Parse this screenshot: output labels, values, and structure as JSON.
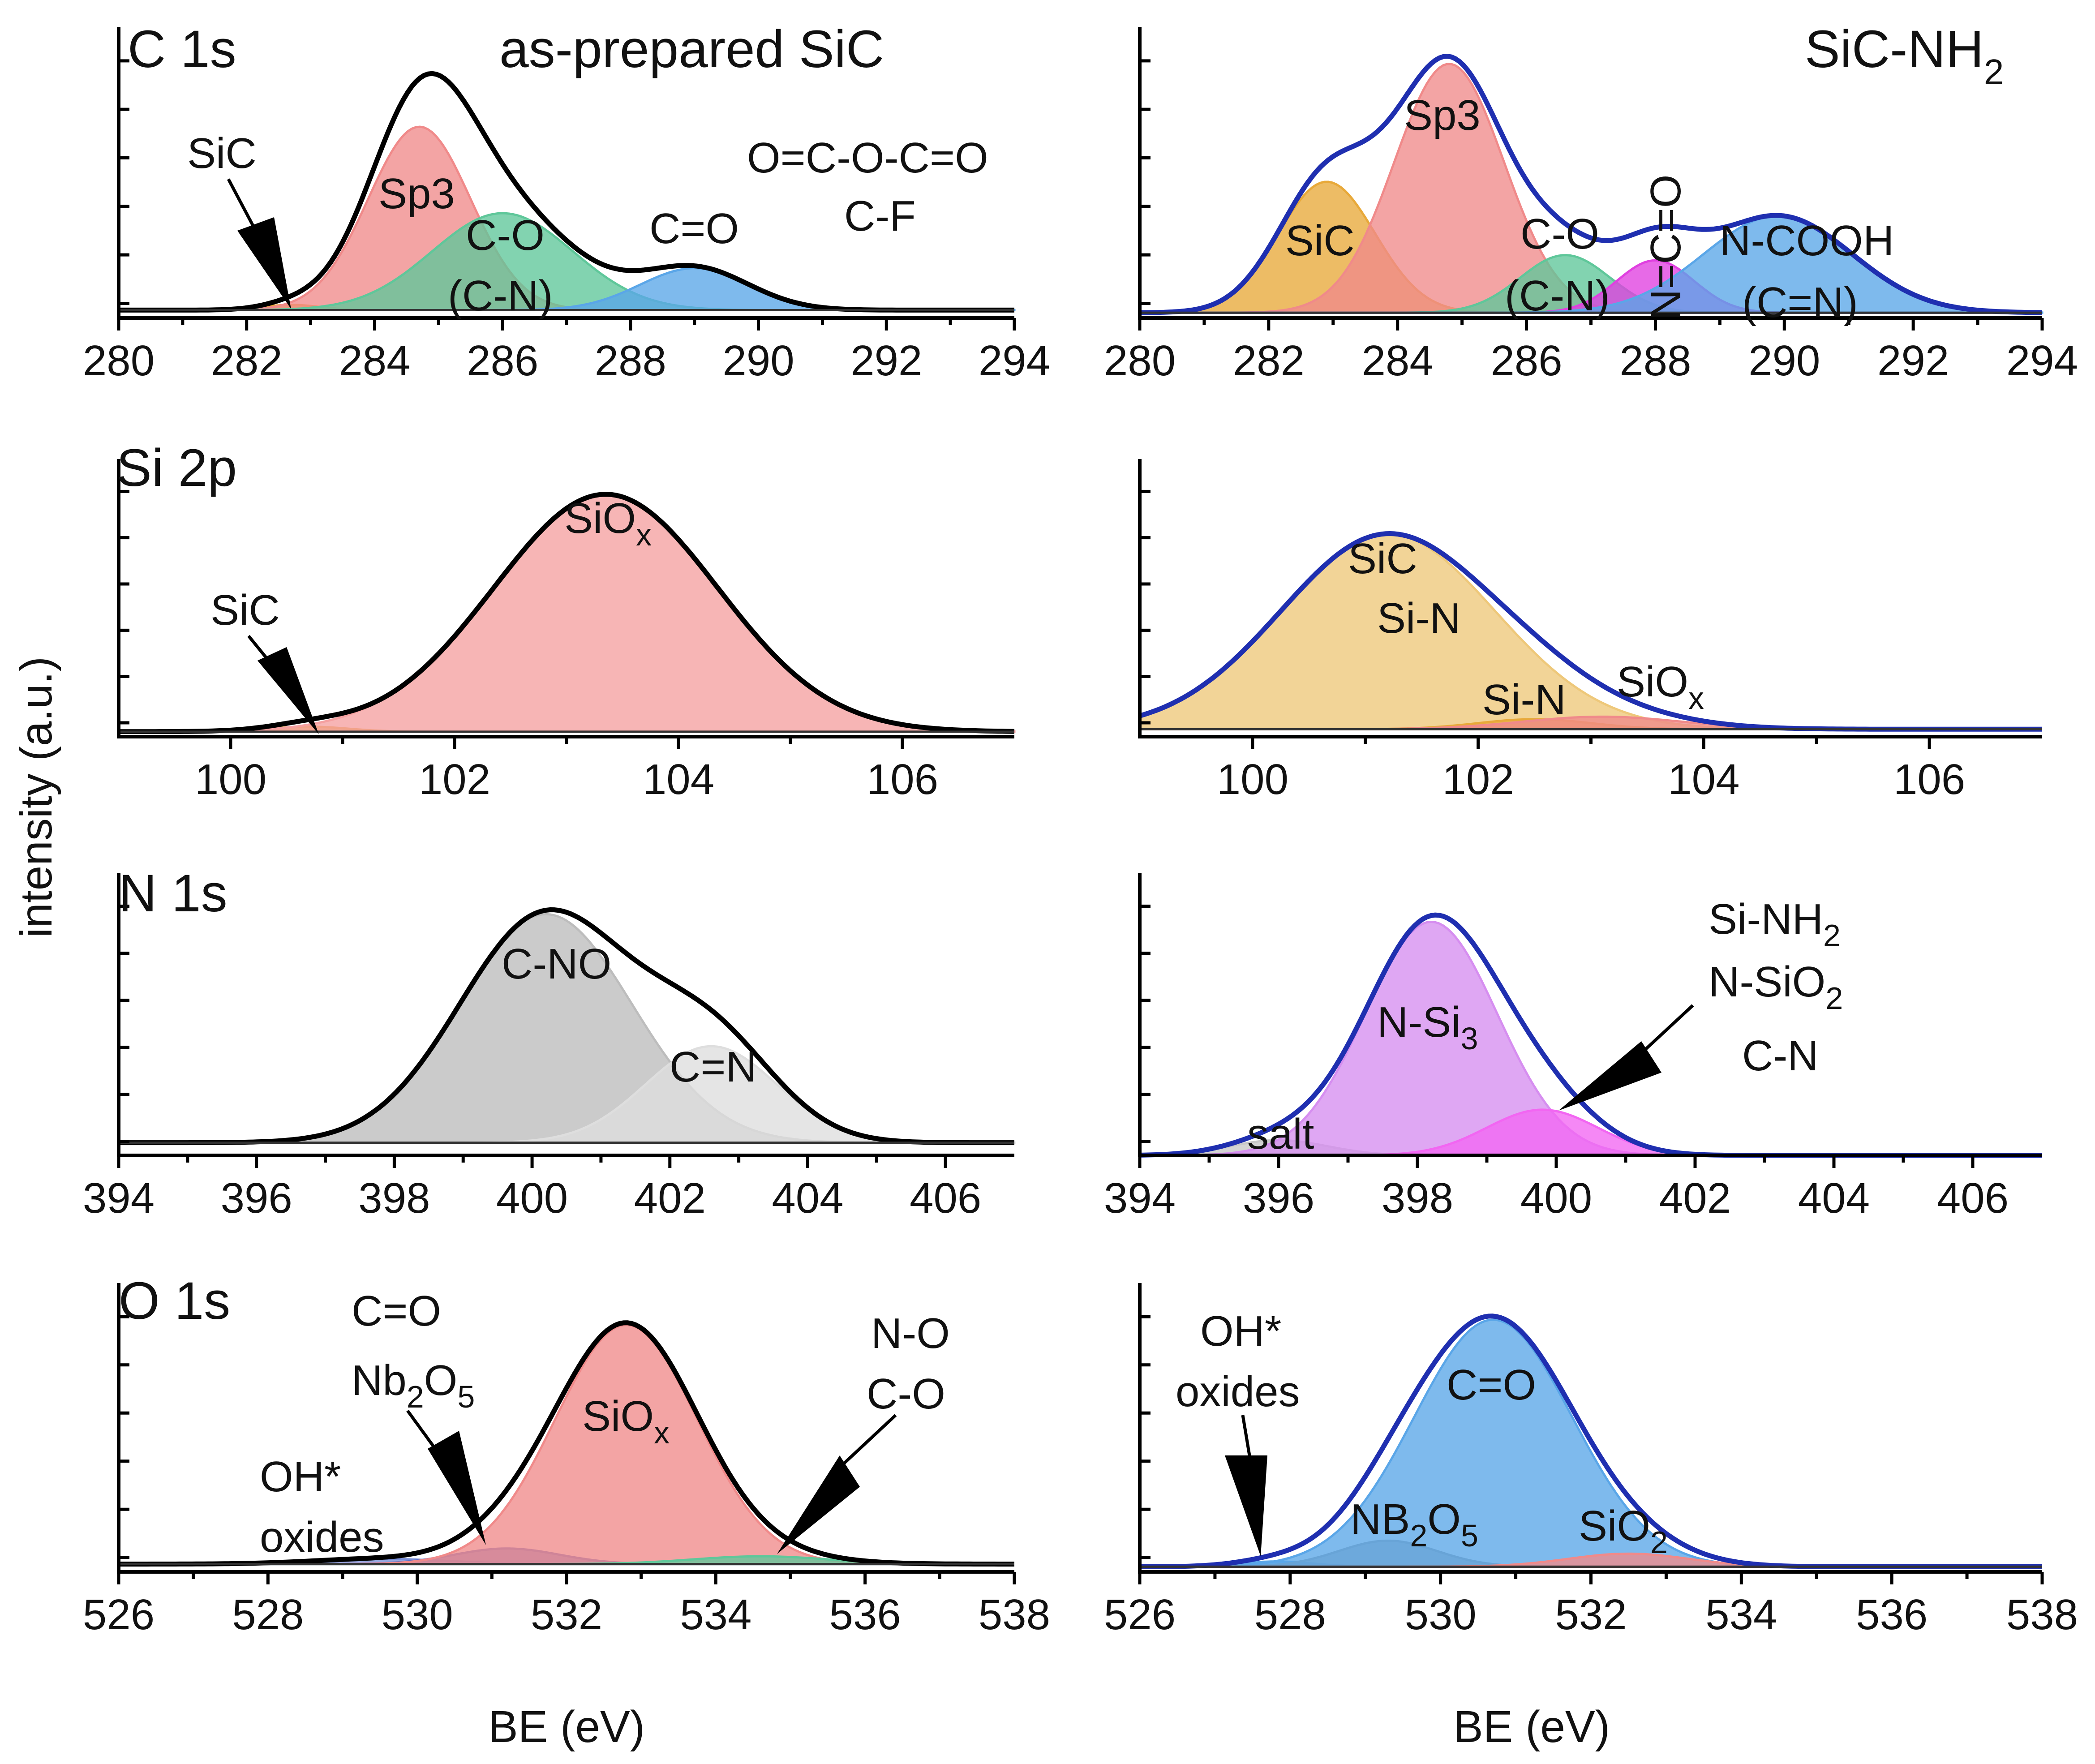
{
  "figure": {
    "ylabel": "intensity (a.u.)",
    "xlabel": "BE (eV)"
  },
  "chart_data": [
    {
      "type": "area",
      "id": "c1s-as-prepared",
      "title": "C 1s",
      "subtitle": "as-prepared SiC",
      "xlabel": "",
      "ylabel": "intensity (a.u.)",
      "xlim": [
        280,
        294
      ],
      "xticks": [
        280,
        282,
        284,
        286,
        288,
        290,
        292,
        294
      ],
      "ylim": [
        0,
        1
      ],
      "envelope_color": "#000000",
      "baseline": 0.03,
      "components": [
        {
          "name": "SiC",
          "center": 282.7,
          "width": 0.45,
          "amp": 0.02,
          "color": "#e8a93a"
        },
        {
          "name": "Sp3",
          "center": 284.7,
          "width": 0.8,
          "amp": 0.7,
          "color": "#f08a8a"
        },
        {
          "name": "C-O (C-N)",
          "center": 286.0,
          "width": 1.1,
          "amp": 0.37,
          "color": "#5fc79a"
        },
        {
          "name": "C=O",
          "center": 289.0,
          "width": 0.85,
          "amp": 0.16,
          "color": "#5aa6e8"
        }
      ],
      "annotations": [
        "SiC",
        "Sp3",
        "C-O",
        "(C-N)",
        "C=O",
        "O=C-O-C=O",
        "C-F"
      ]
    },
    {
      "type": "area",
      "id": "c1s-nh2",
      "title": "SiC-NH2",
      "title_main": "SiC-NH",
      "title_sub": "2",
      "xlabel": "",
      "xlim": [
        280,
        294
      ],
      "xticks": [
        280,
        282,
        284,
        286,
        288,
        290,
        292,
        294
      ],
      "ylim": [
        0,
        1
      ],
      "envelope_color": "#1f2fb0",
      "baseline": 0.02,
      "components": [
        {
          "name": "SiC",
          "center": 282.9,
          "width": 0.75,
          "amp": 0.5,
          "color": "#e8a93a"
        },
        {
          "name": "Sp3",
          "center": 284.8,
          "width": 0.85,
          "amp": 0.95,
          "color": "#f08a8a"
        },
        {
          "name": "C-O (C-N)",
          "center": 286.6,
          "width": 0.7,
          "amp": 0.22,
          "color": "#5fc79a"
        },
        {
          "name": "N=C=O",
          "center": 288.0,
          "width": 0.6,
          "amp": 0.2,
          "color": "#e040e0"
        },
        {
          "name": "N-COOH (C=N)",
          "center": 289.9,
          "width": 1.15,
          "amp": 0.37,
          "color": "#5aa6e8"
        }
      ],
      "annotations": [
        "Sp3",
        "SiC",
        "C-O",
        "(C-N)",
        "N=C=O",
        "N-COOH",
        "(C=N)"
      ]
    },
    {
      "type": "area",
      "id": "si2p-as-prepared",
      "title": "Si 2p",
      "xlabel": "",
      "xlim": [
        99,
        107
      ],
      "xticks": [
        100,
        102,
        104,
        106
      ],
      "ylim": [
        0,
        1
      ],
      "envelope_color": "#000000",
      "baseline": 0.02,
      "components": [
        {
          "name": "SiC",
          "center": 100.7,
          "width": 0.35,
          "amp": 0.02,
          "color": "#e8a93a"
        },
        {
          "name": "SiOx",
          "center": 103.35,
          "width": 1.0,
          "amp": 0.95,
          "color": "#f5a0a0"
        }
      ],
      "annotations": [
        "SiC",
        "SiOx"
      ]
    },
    {
      "type": "area",
      "id": "si2p-nh2",
      "title": "",
      "xlabel": "",
      "xlim": [
        99,
        107
      ],
      "xticks": [
        100,
        102,
        104,
        106
      ],
      "ylim": [
        0,
        1
      ],
      "envelope_color": "#1f2fb0",
      "baseline": 0.03,
      "components": [
        {
          "name": "SiC Si-N",
          "center": 101.2,
          "width": 0.95,
          "amp": 0.78,
          "color": "#eec87a"
        },
        {
          "name": "Si-N",
          "center": 102.5,
          "width": 0.5,
          "amp": 0.04,
          "color": "#e8a93a"
        },
        {
          "name": "SiOx",
          "center": 103.1,
          "width": 0.7,
          "amp": 0.05,
          "color": "#f08a8a"
        }
      ],
      "annotations": [
        "SiC",
        "Si-N",
        "Si-N",
        "SiOx"
      ]
    },
    {
      "type": "area",
      "id": "n1s-as-prepared",
      "title": "N 1s",
      "xlabel": "",
      "xlim": [
        394,
        407
      ],
      "xticks": [
        394,
        396,
        398,
        400,
        402,
        404,
        406
      ],
      "ylim": [
        0,
        1
      ],
      "envelope_color": "#000000",
      "baseline": 0.05,
      "components": [
        {
          "name": "C-NO",
          "center": 400.2,
          "width": 1.25,
          "amp": 0.9,
          "color": "#bdbdbd"
        },
        {
          "name": "C=N",
          "center": 402.6,
          "width": 0.95,
          "amp": 0.38,
          "color": "#dedede"
        }
      ],
      "annotations": [
        "C-NO",
        "C=N"
      ]
    },
    {
      "type": "area",
      "id": "n1s-nh2",
      "title": "",
      "xlabel": "",
      "xlim": [
        394,
        407
      ],
      "xticks": [
        394,
        396,
        398,
        400,
        402,
        404,
        406
      ],
      "ylim": [
        0,
        1
      ],
      "envelope_color": "#1f2fb0",
      "baseline": 0.0,
      "components": [
        {
          "name": "salt",
          "center": 396.0,
          "width": 0.7,
          "amp": 0.06,
          "color": "#c8c8c8"
        },
        {
          "name": "N-Si3",
          "center": 398.2,
          "width": 0.95,
          "amp": 0.92,
          "color": "#d68ef0"
        },
        {
          "name": "Si-NH2 N-SiO2 C-N",
          "center": 399.8,
          "width": 0.8,
          "amp": 0.18,
          "color": "#f266f2"
        }
      ],
      "annotations": [
        "N-Si3",
        "salt",
        "Si-NH2",
        "N-SiO2",
        "C-N"
      ]
    },
    {
      "type": "area",
      "id": "o1s-as-prepared",
      "title": "O 1s",
      "xlabel": "BE (eV)",
      "xlim": [
        526,
        538
      ],
      "xticks": [
        526,
        528,
        530,
        532,
        534,
        536,
        538
      ],
      "ylim": [
        0,
        1
      ],
      "envelope_color": "#000000",
      "baseline": 0.03,
      "components": [
        {
          "name": "OH* oxides",
          "center": 529.5,
          "width": 0.9,
          "amp": 0.02,
          "color": "#7a8fd8"
        },
        {
          "name": "C=O Nb2O5",
          "center": 531.2,
          "width": 0.7,
          "amp": 0.06,
          "color": "#5a6fc8"
        },
        {
          "name": "SiOx",
          "center": 532.8,
          "width": 0.95,
          "amp": 0.92,
          "color": "#f08a8a"
        },
        {
          "name": "N-O C-O",
          "center": 534.6,
          "width": 0.9,
          "amp": 0.03,
          "color": "#5fc79a"
        }
      ],
      "annotations": [
        "C=O",
        "Nb2O5",
        "SiOx",
        "OH*",
        "oxides",
        "N-O",
        "C-O"
      ]
    },
    {
      "type": "area",
      "id": "o1s-nh2",
      "title": "",
      "xlabel": "BE (eV)",
      "xlim": [
        526,
        538
      ],
      "xticks": [
        526,
        528,
        530,
        532,
        534,
        536,
        538
      ],
      "ylim": [
        0,
        1
      ],
      "envelope_color": "#1f2fb0",
      "baseline": 0.02,
      "components": [
        {
          "name": "OH* oxides",
          "center": 527.8,
          "width": 0.5,
          "amp": 0.02,
          "color": "#5aa6e8"
        },
        {
          "name": "NB2O5",
          "center": 529.3,
          "width": 0.65,
          "amp": 0.1,
          "color": "#9a9a9a"
        },
        {
          "name": "C=O",
          "center": 530.7,
          "width": 1.05,
          "amp": 0.95,
          "color": "#5aa6e8"
        },
        {
          "name": "SiO2",
          "center": 532.5,
          "width": 0.8,
          "amp": 0.05,
          "color": "#f08a8a"
        }
      ],
      "annotations": [
        "OH*",
        "oxides",
        "C=O",
        "NB2O5",
        "SiO2"
      ]
    }
  ]
}
